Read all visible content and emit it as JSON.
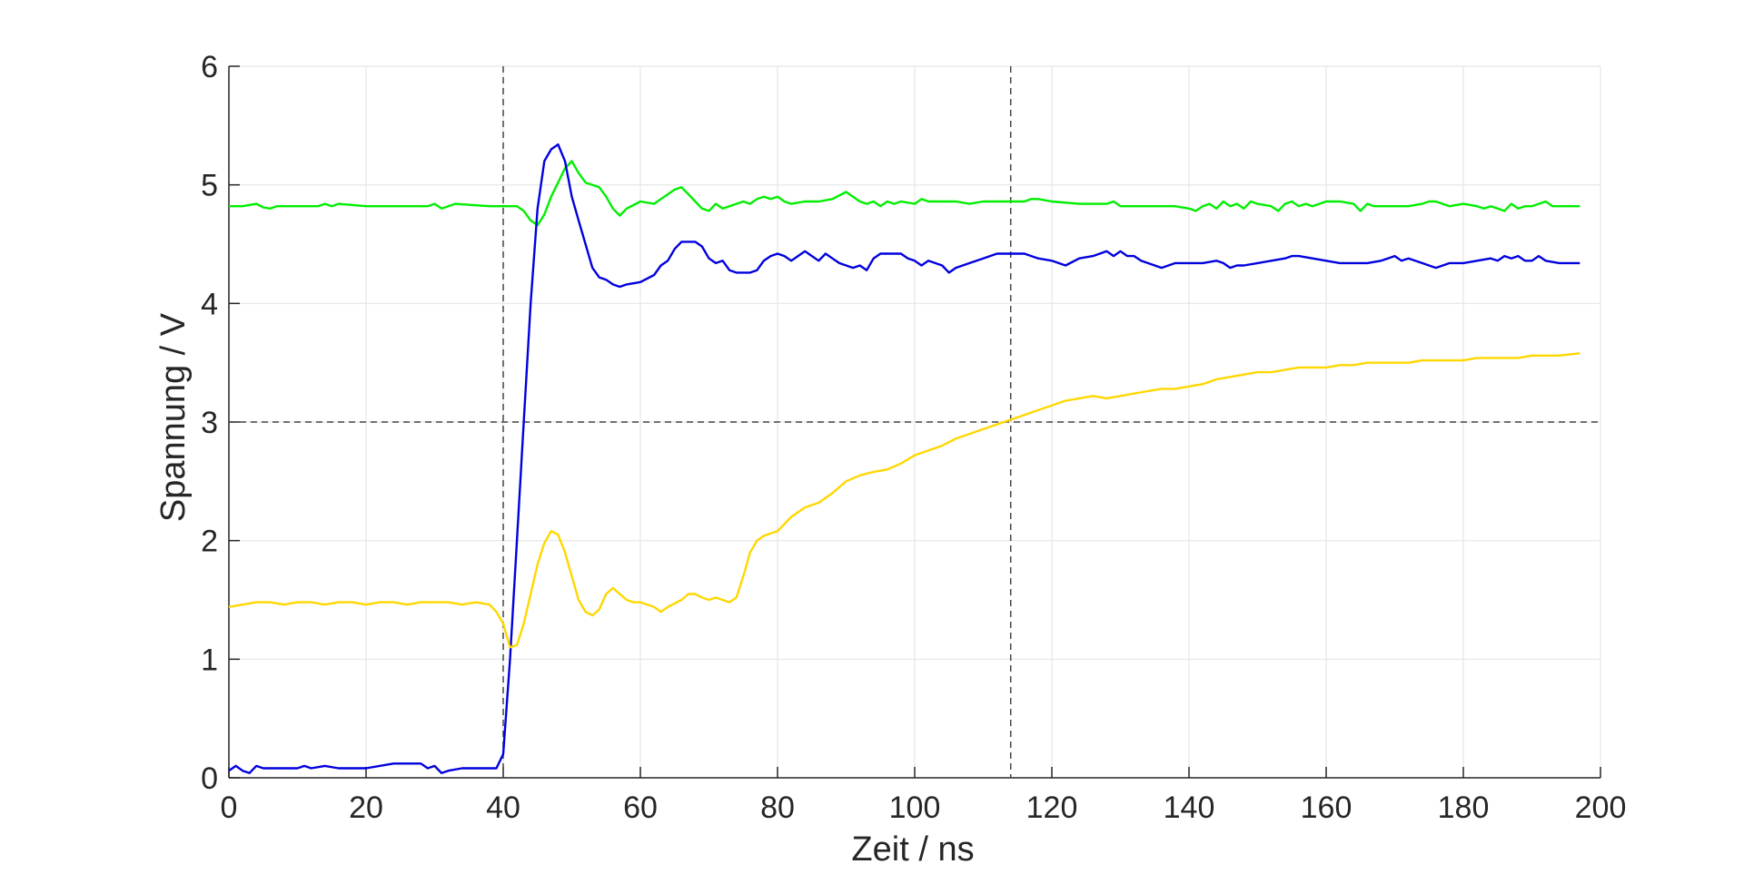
{
  "chart_data": {
    "type": "line",
    "title": "",
    "xlabel": "Zeit / ns",
    "ylabel": "Spannung / V",
    "xlim": [
      0,
      200
    ],
    "ylim": [
      0,
      6
    ],
    "xticks": [
      0,
      20,
      40,
      60,
      80,
      100,
      120,
      140,
      160,
      180,
      200
    ],
    "yticks": [
      0,
      1,
      2,
      3,
      4,
      5,
      6
    ],
    "grid": true,
    "reference_lines": {
      "vertical": [
        40,
        114
      ],
      "horizontal": [
        3
      ]
    },
    "series": [
      {
        "color": "#00ee00",
        "x": [
          0,
          2,
          4,
          5,
          6,
          7,
          10,
          13,
          14,
          15,
          16,
          20,
          25,
          29,
          30,
          31,
          32,
          33,
          38,
          40,
          42,
          43,
          44,
          45,
          46,
          47,
          48,
          49,
          50,
          51,
          52,
          53,
          54,
          55,
          56,
          57,
          58,
          60,
          62,
          63,
          64,
          65,
          66,
          67,
          68,
          69,
          70,
          71,
          72,
          73,
          74,
          75,
          76,
          77,
          78,
          79,
          80,
          81,
          82,
          84,
          86,
          88,
          90,
          91,
          92,
          93,
          94,
          95,
          96,
          97,
          98,
          100,
          101,
          102,
          104,
          106,
          108,
          110,
          112,
          114,
          116,
          117,
          118,
          120,
          124,
          128,
          129,
          130,
          132,
          134,
          136,
          138,
          140,
          141,
          142,
          143,
          144,
          145,
          146,
          147,
          148,
          149,
          150,
          152,
          153,
          154,
          155,
          156,
          157,
          158,
          160,
          162,
          164,
          165,
          166,
          167,
          168,
          170,
          172,
          174,
          175,
          176,
          178,
          180,
          182,
          183,
          184,
          185,
          186,
          187,
          188,
          189,
          190,
          191,
          192,
          193,
          194,
          195,
          197
        ],
        "values": [
          4.82,
          4.82,
          4.84,
          4.81,
          4.8,
          4.82,
          4.82,
          4.82,
          4.84,
          4.82,
          4.84,
          4.82,
          4.82,
          4.82,
          4.84,
          4.8,
          4.82,
          4.84,
          4.82,
          4.82,
          4.82,
          4.78,
          4.7,
          4.66,
          4.75,
          4.9,
          5.02,
          5.14,
          5.2,
          5.1,
          5.02,
          5.0,
          4.98,
          4.9,
          4.8,
          4.74,
          4.8,
          4.86,
          4.84,
          4.88,
          4.92,
          4.96,
          4.98,
          4.92,
          4.86,
          4.8,
          4.78,
          4.84,
          4.8,
          4.82,
          4.84,
          4.86,
          4.84,
          4.88,
          4.9,
          4.88,
          4.9,
          4.86,
          4.84,
          4.86,
          4.86,
          4.88,
          4.94,
          4.9,
          4.86,
          4.84,
          4.86,
          4.82,
          4.86,
          4.84,
          4.86,
          4.84,
          4.88,
          4.86,
          4.86,
          4.86,
          4.84,
          4.86,
          4.86,
          4.86,
          4.86,
          4.88,
          4.88,
          4.86,
          4.84,
          4.84,
          4.86,
          4.82,
          4.82,
          4.82,
          4.82,
          4.82,
          4.8,
          4.78,
          4.82,
          4.84,
          4.8,
          4.86,
          4.82,
          4.84,
          4.8,
          4.86,
          4.84,
          4.82,
          4.78,
          4.84,
          4.86,
          4.82,
          4.84,
          4.82,
          4.86,
          4.86,
          4.84,
          4.78,
          4.84,
          4.82,
          4.82,
          4.82,
          4.82,
          4.84,
          4.86,
          4.86,
          4.82,
          4.84,
          4.82,
          4.8,
          4.82,
          4.8,
          4.78,
          4.84,
          4.8,
          4.82,
          4.82,
          4.84,
          4.86,
          4.82,
          4.82,
          4.82,
          4.82
        ]
      },
      {
        "color": "#0000dd",
        "x": [
          0,
          1,
          2,
          3,
          4,
          5,
          8,
          9,
          10,
          11,
          12,
          14,
          16,
          20,
          24,
          25,
          26,
          28,
          29,
          30,
          31,
          32,
          34,
          36,
          38,
          39,
          40,
          41,
          42,
          43,
          44,
          45,
          46,
          47,
          48,
          49,
          50,
          51,
          52,
          53,
          54,
          55,
          56,
          57,
          58,
          60,
          62,
          63,
          64,
          65,
          66,
          67,
          68,
          69,
          70,
          71,
          72,
          73,
          74,
          75,
          76,
          77,
          78,
          79,
          80,
          81,
          82,
          83,
          84,
          85,
          86,
          87,
          88,
          89,
          90,
          91,
          92,
          93,
          94,
          95,
          96,
          97,
          98,
          99,
          100,
          101,
          102,
          104,
          105,
          106,
          108,
          110,
          112,
          114,
          116,
          118,
          120,
          122,
          124,
          126,
          127,
          128,
          129,
          130,
          131,
          132,
          133,
          134,
          136,
          138,
          140,
          142,
          144,
          145,
          146,
          147,
          148,
          150,
          152,
          154,
          155,
          156,
          158,
          160,
          162,
          164,
          166,
          168,
          169,
          170,
          171,
          172,
          174,
          176,
          178,
          180,
          182,
          184,
          185,
          186,
          187,
          188,
          189,
          190,
          191,
          192,
          194,
          197
        ],
        "values": [
          0.06,
          0.1,
          0.06,
          0.04,
          0.1,
          0.08,
          0.08,
          0.08,
          0.08,
          0.1,
          0.08,
          0.1,
          0.08,
          0.08,
          0.12,
          0.12,
          0.12,
          0.12,
          0.08,
          0.1,
          0.04,
          0.06,
          0.08,
          0.08,
          0.08,
          0.08,
          0.2,
          1.0,
          2.0,
          3.0,
          4.0,
          4.8,
          5.2,
          5.3,
          5.34,
          5.2,
          4.9,
          4.7,
          4.5,
          4.3,
          4.22,
          4.2,
          4.16,
          4.14,
          4.16,
          4.18,
          4.24,
          4.32,
          4.36,
          4.46,
          4.52,
          4.52,
          4.52,
          4.48,
          4.38,
          4.34,
          4.36,
          4.28,
          4.26,
          4.26,
          4.26,
          4.28,
          4.36,
          4.4,
          4.42,
          4.4,
          4.36,
          4.4,
          4.44,
          4.4,
          4.36,
          4.42,
          4.38,
          4.34,
          4.32,
          4.3,
          4.32,
          4.28,
          4.38,
          4.42,
          4.42,
          4.42,
          4.42,
          4.38,
          4.36,
          4.32,
          4.36,
          4.32,
          4.26,
          4.3,
          4.34,
          4.38,
          4.42,
          4.42,
          4.42,
          4.38,
          4.36,
          4.32,
          4.38,
          4.4,
          4.42,
          4.44,
          4.4,
          4.44,
          4.4,
          4.4,
          4.36,
          4.34,
          4.3,
          4.34,
          4.34,
          4.34,
          4.36,
          4.34,
          4.3,
          4.32,
          4.32,
          4.34,
          4.36,
          4.38,
          4.4,
          4.4,
          4.38,
          4.36,
          4.34,
          4.34,
          4.34,
          4.36,
          4.38,
          4.4,
          4.36,
          4.38,
          4.34,
          4.3,
          4.34,
          4.34,
          4.36,
          4.38,
          4.36,
          4.4,
          4.38,
          4.4,
          4.36,
          4.36,
          4.4,
          4.36,
          4.34,
          4.34
        ]
      },
      {
        "color": "#ffd700",
        "x": [
          0,
          2,
          4,
          6,
          8,
          10,
          12,
          14,
          16,
          18,
          20,
          22,
          24,
          26,
          28,
          30,
          32,
          34,
          36,
          38,
          39,
          40,
          41,
          42,
          43,
          44,
          45,
          46,
          47,
          48,
          49,
          50,
          51,
          52,
          53,
          54,
          55,
          56,
          57,
          58,
          59,
          60,
          62,
          63,
          64,
          66,
          67,
          68,
          69,
          70,
          71,
          72,
          73,
          74,
          75,
          76,
          77,
          78,
          79,
          80,
          82,
          84,
          86,
          88,
          90,
          92,
          94,
          96,
          98,
          100,
          102,
          104,
          106,
          108,
          110,
          112,
          114,
          116,
          118,
          120,
          122,
          124,
          126,
          128,
          130,
          132,
          134,
          136,
          138,
          140,
          142,
          144,
          146,
          148,
          150,
          152,
          154,
          156,
          158,
          160,
          162,
          164,
          166,
          168,
          170,
          172,
          174,
          176,
          178,
          180,
          182,
          184,
          186,
          188,
          190,
          192,
          194,
          197
        ],
        "values": [
          1.44,
          1.46,
          1.48,
          1.48,
          1.46,
          1.48,
          1.48,
          1.46,
          1.48,
          1.48,
          1.46,
          1.48,
          1.48,
          1.46,
          1.48,
          1.48,
          1.48,
          1.46,
          1.48,
          1.46,
          1.4,
          1.3,
          1.1,
          1.12,
          1.3,
          1.55,
          1.8,
          1.98,
          2.08,
          2.05,
          1.9,
          1.7,
          1.5,
          1.4,
          1.37,
          1.42,
          1.55,
          1.6,
          1.55,
          1.5,
          1.48,
          1.48,
          1.44,
          1.4,
          1.44,
          1.5,
          1.55,
          1.55,
          1.52,
          1.5,
          1.52,
          1.5,
          1.48,
          1.52,
          1.7,
          1.9,
          2.0,
          2.04,
          2.06,
          2.08,
          2.2,
          2.28,
          2.32,
          2.4,
          2.5,
          2.55,
          2.58,
          2.6,
          2.65,
          2.72,
          2.76,
          2.8,
          2.86,
          2.9,
          2.94,
          2.98,
          3.02,
          3.06,
          3.1,
          3.14,
          3.18,
          3.2,
          3.22,
          3.2,
          3.22,
          3.24,
          3.26,
          3.28,
          3.28,
          3.3,
          3.32,
          3.36,
          3.38,
          3.4,
          3.42,
          3.42,
          3.44,
          3.46,
          3.46,
          3.46,
          3.48,
          3.48,
          3.5,
          3.5,
          3.5,
          3.5,
          3.52,
          3.52,
          3.52,
          3.52,
          3.54,
          3.54,
          3.54,
          3.54,
          3.56,
          3.56,
          3.56,
          3.58
        ]
      }
    ]
  }
}
